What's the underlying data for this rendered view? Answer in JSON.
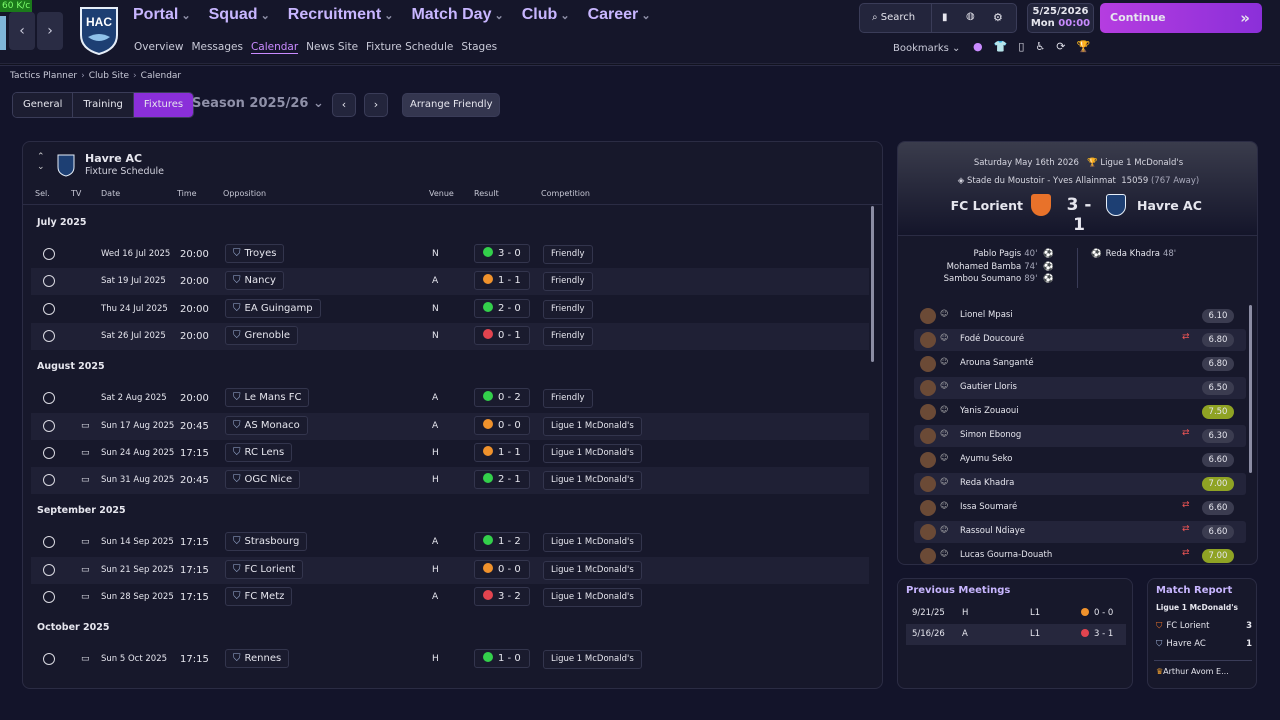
{
  "fps": "60 K/c",
  "club": {
    "badge": "HAC"
  },
  "nav": {
    "menus": [
      "Portal",
      "Squad",
      "Recruitment",
      "Match Day",
      "Club",
      "Career"
    ],
    "submenu": [
      "Overview",
      "Messages",
      "Calendar",
      "News Site",
      "Fixture Schedule",
      "Stages"
    ],
    "search": "Search",
    "date": "5/25/2026",
    "day": "Mon",
    "time": "00:00",
    "continue": "Continue",
    "bookmarks": "Bookmarks"
  },
  "breadcrumb": [
    "Tactics Planner",
    "Club Site",
    "Calendar"
  ],
  "tabs": [
    "General",
    "Training",
    "Fixtures"
  ],
  "season": "Season 2025/26",
  "arrange": "Arrange Friendly",
  "fixtures": {
    "team": "Havre AC",
    "subtitle": "Fixture Schedule",
    "columns": [
      "Sel.",
      "TV",
      "Date",
      "Time",
      "Opposition",
      "Venue",
      "Result",
      "Competition"
    ],
    "groups": [
      {
        "month": "July 2025",
        "rows": [
          {
            "date": "Wed 16 Jul 2025",
            "time": "20:00",
            "opponent": "Troyes",
            "venue": "N",
            "result": "3 - 0",
            "result_color": "#33d04b",
            "competition": "Friendly",
            "tv": false
          },
          {
            "date": "Sat 19 Jul 2025",
            "time": "20:00",
            "opponent": "Nancy",
            "venue": "A",
            "result": "1 - 1",
            "result_color": "#f0922c",
            "competition": "Friendly",
            "tv": false
          },
          {
            "date": "Thu 24 Jul 2025",
            "time": "20:00",
            "opponent": "EA Guingamp",
            "venue": "N",
            "result": "2 - 0",
            "result_color": "#33d04b",
            "competition": "Friendly",
            "tv": false
          },
          {
            "date": "Sat 26 Jul 2025",
            "time": "20:00",
            "opponent": "Grenoble",
            "venue": "N",
            "result": "0 - 1",
            "result_color": "#e2444f",
            "competition": "Friendly",
            "tv": false
          }
        ]
      },
      {
        "month": "August 2025",
        "rows": [
          {
            "date": "Sat 2 Aug 2025",
            "time": "20:00",
            "opponent": "Le Mans FC",
            "venue": "A",
            "result": "0 - 2",
            "result_color": "#33d04b",
            "competition": "Friendly",
            "tv": false
          },
          {
            "date": "Sun 17 Aug 2025",
            "time": "20:45",
            "opponent": "AS Monaco",
            "venue": "A",
            "result": "0 - 0",
            "result_color": "#f0922c",
            "competition": "Ligue 1 McDonald's",
            "tv": true
          },
          {
            "date": "Sun 24 Aug 2025",
            "time": "17:15",
            "opponent": "RC Lens",
            "venue": "H",
            "result": "1 - 1",
            "result_color": "#f0922c",
            "competition": "Ligue 1 McDonald's",
            "tv": true
          },
          {
            "date": "Sun 31 Aug 2025",
            "time": "20:45",
            "opponent": "OGC Nice",
            "venue": "H",
            "result": "2 - 1",
            "result_color": "#33d04b",
            "competition": "Ligue 1 McDonald's",
            "tv": true
          }
        ]
      },
      {
        "month": "September 2025",
        "rows": [
          {
            "date": "Sun 14 Sep 2025",
            "time": "17:15",
            "opponent": "Strasbourg",
            "venue": "A",
            "result": "1 - 2",
            "result_color": "#33d04b",
            "competition": "Ligue 1 McDonald's",
            "tv": true
          },
          {
            "date": "Sun 21 Sep 2025",
            "time": "17:15",
            "opponent": "FC Lorient",
            "venue": "H",
            "result": "0 - 0",
            "result_color": "#f0922c",
            "competition": "Ligue 1 McDonald's",
            "tv": true
          },
          {
            "date": "Sun 28 Sep 2025",
            "time": "17:15",
            "opponent": "FC Metz",
            "venue": "A",
            "result": "3 - 2",
            "result_color": "#e2444f",
            "competition": "Ligue 1 McDonald's",
            "tv": true
          }
        ]
      },
      {
        "month": "October 2025",
        "rows": [
          {
            "date": "Sun 5 Oct 2025",
            "time": "17:15",
            "opponent": "Rennes",
            "venue": "H",
            "result": "1 - 0",
            "result_color": "#33d04b",
            "competition": "Ligue 1 McDonald's",
            "tv": true
          }
        ]
      }
    ]
  },
  "match": {
    "date": "Saturday May 16th 2026",
    "competition": "Ligue 1 McDonald's",
    "stadium": "Stade du Moustoir - Yves Allainmat",
    "attendance": "15059",
    "away_fans": "(767 Away)",
    "home": "FC Lorient",
    "score": "3 - 1",
    "away": "Havre AC",
    "home_scorers": [
      [
        "Pablo Pagis",
        "40'"
      ],
      [
        "Mohamed Bamba",
        "74'"
      ],
      [
        "Sambou Soumano",
        "89'"
      ]
    ],
    "away_scorers": [
      [
        "Reda Khadra",
        "48'"
      ]
    ],
    "players": [
      {
        "name": "Lionel Mpasi",
        "rating": "6.10",
        "color": "#3b3c50",
        "sub": false
      },
      {
        "name": "Fodé Doucouré",
        "rating": "6.80",
        "color": "#3b3c50",
        "sub": true
      },
      {
        "name": "Arouna Sanganté",
        "rating": "6.80",
        "color": "#3b3c50",
        "sub": false
      },
      {
        "name": "Gautier Lloris",
        "rating": "6.50",
        "color": "#3b3c50",
        "sub": false
      },
      {
        "name": "Yanis Zouaoui",
        "rating": "7.50",
        "color": "#8fa324",
        "sub": false
      },
      {
        "name": "Simon Ebonog",
        "rating": "6.30",
        "color": "#3b3c50",
        "sub": true
      },
      {
        "name": "Ayumu Seko",
        "rating": "6.60",
        "color": "#3b3c50",
        "sub": false
      },
      {
        "name": "Reda Khadra",
        "rating": "7.00",
        "color": "#8fa324",
        "sub": false
      },
      {
        "name": "Issa Soumaré",
        "rating": "6.60",
        "color": "#3b3c50",
        "sub": true
      },
      {
        "name": "Rassoul Ndiaye",
        "rating": "6.60",
        "color": "#3b3c50",
        "sub": true
      },
      {
        "name": "Lucas Gourna-Douath",
        "rating": "7.00",
        "color": "#8fa324",
        "sub": true
      }
    ]
  },
  "previous": {
    "title": "Previous Meetings",
    "rows": [
      {
        "date": "9/21/25",
        "venue": "H",
        "competition": "L1",
        "result": "0 - 0",
        "result_color": "#f0922c"
      },
      {
        "date": "5/16/26",
        "venue": "A",
        "competition": "L1",
        "result": "3 - 1",
        "result_color": "#e2444f"
      }
    ]
  },
  "report": {
    "title": "Match Report",
    "competition": "Ligue 1 McDonald's",
    "teams": [
      [
        "FC Lorient",
        "3"
      ],
      [
        "Havre AC",
        "1"
      ]
    ],
    "motm": "Arthur Avom E..."
  }
}
